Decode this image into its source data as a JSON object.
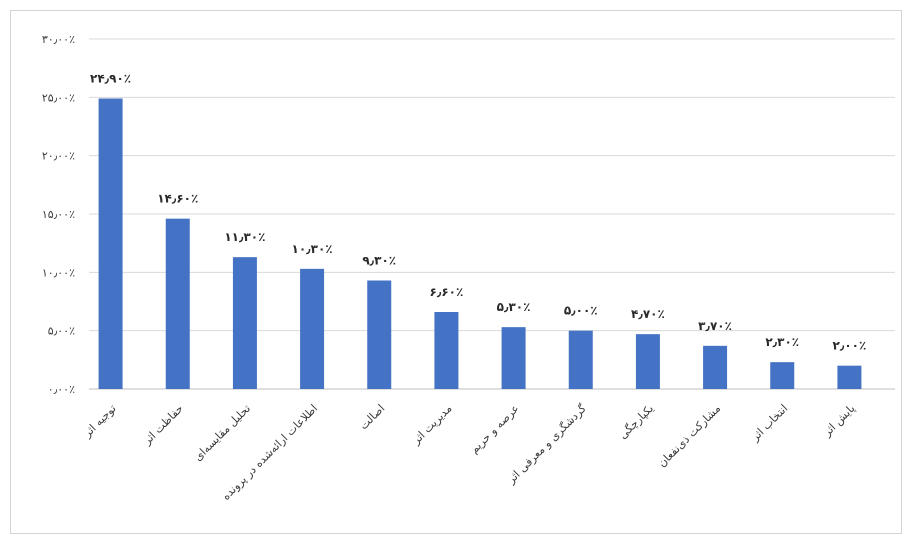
{
  "chart_data": {
    "type": "bar",
    "title": "",
    "xlabel": "",
    "ylabel": "",
    "ylim": [
      0,
      30
    ],
    "grid": true,
    "legend": "none",
    "y_ticks": [
      "۰٫۰۰٪",
      "۵٫۰۰٪",
      "۱۰٫۰۰٪",
      "۱۵٫۰۰٪",
      "۲۰٫۰۰٪",
      "۲۵٫۰۰٪",
      "۳۰٫۰۰٪"
    ],
    "y_tick_values": [
      0,
      5,
      10,
      15,
      20,
      25,
      30
    ],
    "categories": [
      "توجیه اثر",
      "حفاظت اثر",
      "تحلیل مقایسه‌ای",
      "اطلاعات ارائه‌شده در پرونده",
      "اصالت",
      "مدیریت اثر",
      "عرصه و حریم",
      "گردشگری و معرفی اثر",
      "یکپارچگی",
      "مشارکت ذی‌نفعان",
      "انتخاب اثر",
      "پایش اثر"
    ],
    "values": [
      24.9,
      14.6,
      11.3,
      10.3,
      9.3,
      6.6,
      5.3,
      5.0,
      4.7,
      3.7,
      2.3,
      2.0
    ],
    "data_labels": [
      "۲۴٫۹۰٪",
      "۱۴٫۶۰٪",
      "۱۱٫۳۰٪",
      "۱۰٫۳۰٪",
      "۹٫۳۰٪",
      "۶٫۶۰٪",
      "۵٫۳۰٪",
      "۵٫۰۰٪",
      "۴٫۷۰٪",
      "۳٫۷۰٪",
      "۲٫۳۰٪",
      "۲٫۰۰٪"
    ],
    "bar_color": "#4472c4",
    "grid_color": "#d9d9d9"
  }
}
